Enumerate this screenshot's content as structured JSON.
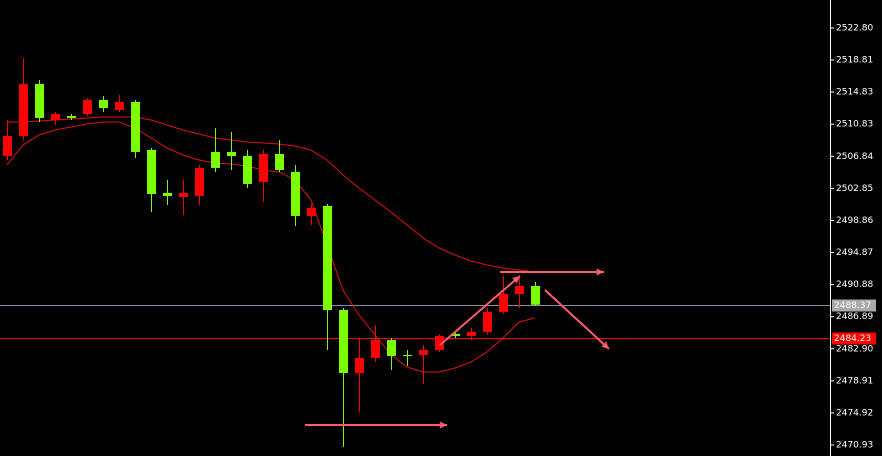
{
  "chart_data": {
    "type": "candlestick",
    "ylim": [
      2469.56,
      2526.28
    ],
    "yticks": [
      {
        "value": 2522.8,
        "label": "2522.80"
      },
      2518.81,
      2514.83,
      2510.83,
      2506.84,
      2502.85,
      2498.86,
      2494.87,
      2490.88,
      2486.89,
      {
        "value": 2482.9,
        "label": "2482.90"
      },
      2478.91,
      2474.92,
      2470.93
    ],
    "up_color": "#ff0000",
    "down_color": "#7cfc00",
    "candles": [
      {
        "open": 2506.88,
        "high": 2511.36,
        "low": 2506.38,
        "close": 2509.37
      },
      {
        "open": 2509.37,
        "high": 2519.07,
        "low": 2508.87,
        "close": 2515.83
      },
      {
        "open": 2515.83,
        "high": 2516.33,
        "low": 2511.11,
        "close": 2511.61
      },
      {
        "open": 2511.36,
        "high": 2512.35,
        "low": 2510.74,
        "close": 2512.1
      },
      {
        "open": 2511.85,
        "high": 2512.1,
        "low": 2511.36,
        "close": 2511.61
      },
      {
        "open": 2512.1,
        "high": 2514.09,
        "low": 2511.85,
        "close": 2513.84
      },
      {
        "open": 2513.84,
        "high": 2514.34,
        "low": 2512.35,
        "close": 2512.85
      },
      {
        "open": 2512.6,
        "high": 2514.47,
        "low": 2512.35,
        "close": 2513.6
      },
      {
        "open": 2513.6,
        "high": 2513.84,
        "low": 2506.63,
        "close": 2507.38
      },
      {
        "open": 2507.63,
        "high": 2507.87,
        "low": 2499.91,
        "close": 2502.15
      },
      {
        "open": 2502.28,
        "high": 2503.89,
        "low": 2500.78,
        "close": 2501.9
      },
      {
        "open": 2501.78,
        "high": 2503.89,
        "low": 2499.54,
        "close": 2502.28
      },
      {
        "open": 2501.9,
        "high": 2505.76,
        "low": 2500.78,
        "close": 2505.39
      },
      {
        "open": 2507.38,
        "high": 2510.36,
        "low": 2504.89,
        "close": 2505.39
      },
      {
        "open": 2507.38,
        "high": 2509.86,
        "low": 2505.14,
        "close": 2506.88
      },
      {
        "open": 2506.88,
        "high": 2507.63,
        "low": 2502.9,
        "close": 2503.4
      },
      {
        "open": 2503.65,
        "high": 2507.63,
        "low": 2501.16,
        "close": 2507.13
      },
      {
        "open": 2507.13,
        "high": 2508.87,
        "low": 2504.89,
        "close": 2505.14
      },
      {
        "open": 2504.89,
        "high": 2505.76,
        "low": 2498.17,
        "close": 2499.42
      },
      {
        "open": 2499.42,
        "high": 2500.91,
        "low": 2498.3,
        "close": 2500.41
      },
      {
        "open": 2500.66,
        "high": 2500.91,
        "low": 2482.75,
        "close": 2487.72
      },
      {
        "open": 2487.72,
        "high": 2487.97,
        "low": 2470.69,
        "close": 2479.89
      },
      {
        "open": 2479.89,
        "high": 2484.24,
        "low": 2475.04,
        "close": 2481.76
      },
      {
        "open": 2481.76,
        "high": 2485.86,
        "low": 2481.26,
        "close": 2483.99
      },
      {
        "open": 2483.99,
        "high": 2484.24,
        "low": 2480.26,
        "close": 2482.0
      },
      {
        "open": 2482.13,
        "high": 2482.75,
        "low": 2480.76,
        "close": 2482.0
      },
      {
        "open": 2482.13,
        "high": 2483.37,
        "low": 2478.52,
        "close": 2482.75
      },
      {
        "open": 2482.75,
        "high": 2484.74,
        "low": 2482.5,
        "close": 2484.49
      },
      {
        "open": 2484.74,
        "high": 2484.99,
        "low": 2484.24,
        "close": 2484.49
      },
      {
        "open": 2484.49,
        "high": 2485.49,
        "low": 2483.99,
        "close": 2484.99
      },
      {
        "open": 2484.99,
        "high": 2487.97,
        "low": 2484.62,
        "close": 2487.48
      },
      {
        "open": 2487.48,
        "high": 2491.95,
        "low": 2487.23,
        "close": 2489.71
      },
      {
        "open": 2489.71,
        "high": 2491.7,
        "low": 2487.97,
        "close": 2490.71
      },
      {
        "open": 2490.71,
        "high": 2491.21,
        "low": 2488.22,
        "close": 2488.37
      }
    ],
    "series": [
      {
        "color": "#e01010",
        "values": [
          2511.11,
          2511.11,
          2511.23,
          2511.35,
          2511.48,
          2511.6,
          2511.73,
          2511.73,
          2511.73,
          2511.35,
          2510.73,
          2510.11,
          2509.61,
          2509.12,
          2508.87,
          2508.62,
          2508.49,
          2508.37,
          2508.12,
          2507.62,
          2506.38,
          2504.51,
          2502.9,
          2501.4,
          2499.91,
          2498.29,
          2496.68,
          2495.43,
          2494.56,
          2493.82,
          2493.32,
          2492.95,
          2492.7,
          2492.45
        ]
      },
      {
        "color": "#e01010",
        "values": [
          2505.76,
          2508.24,
          2509.49,
          2510.11,
          2510.48,
          2510.86,
          2511.11,
          2511.11,
          2510.36,
          2509.12,
          2507.87,
          2507.0,
          2506.38,
          2506.01,
          2505.88,
          2505.63,
          2505.14,
          2504.89,
          2503.89,
          2501.4,
          2495.81,
          2490.21,
          2487.1,
          2484.61,
          2482.13,
          2480.63,
          2480.01,
          2480.01,
          2480.51,
          2481.25,
          2482.5,
          2484.24,
          2486.23,
          2486.73
        ]
      }
    ],
    "price_lines": [
      {
        "value": 2488.37,
        "color": "#7f8fa6",
        "label_fill": "#a9a9a9",
        "label_color": "#000000"
      },
      {
        "value": 2484.23,
        "color": "#ff0000",
        "label_fill": "#ff0000",
        "label_color": "#8b0000"
      }
    ]
  }
}
